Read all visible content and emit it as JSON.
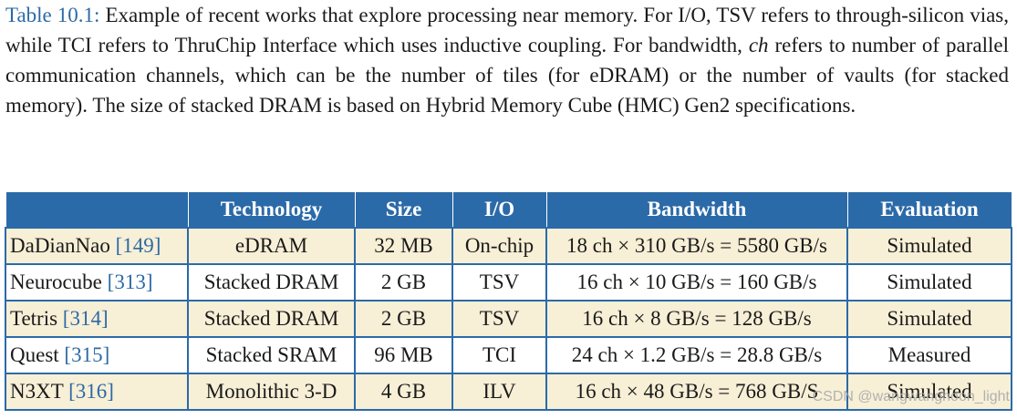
{
  "caption": {
    "label": "Table 10.1:",
    "part1": " Example of recent works that explore processing near memory. For I/O, TSV refers to through-silicon vias, while TCI refers to ThruChip Interface which uses inductive coupling. For bandwidth, ",
    "italic": "ch",
    "part2": " refers to number of parallel communication channels, which can be the number of tiles (for eDRAM) or the number of vaults (for stacked memory). The size of stacked DRAM is based on Hybrid Memory Cube (HMC) Gen2 specifications."
  },
  "table": {
    "headers": [
      "",
      "Technology",
      "Size",
      "I/O",
      "Bandwidth",
      "Evaluation"
    ],
    "rows": [
      {
        "name": "DaDianNao",
        "ref": "[149]",
        "technology": "eDRAM",
        "size": "32 MB",
        "io": "On-chip",
        "bandwidth": "18 ch × 310 GB/s = 5580 GB/s",
        "evaluation": "Simulated"
      },
      {
        "name": "Neurocube",
        "ref": "[313]",
        "technology": "Stacked DRAM",
        "size": "2 GB",
        "io": "TSV",
        "bandwidth": "16 ch × 10 GB/s = 160 GB/s",
        "evaluation": "Simulated"
      },
      {
        "name": "Tetris",
        "ref": "[314]",
        "technology": "Stacked DRAM",
        "size": "2 GB",
        "io": "TSV",
        "bandwidth": "16 ch × 8 GB/s = 128 GB/s",
        "evaluation": "Simulated"
      },
      {
        "name": "Quest",
        "ref": "[315]",
        "technology": "Stacked SRAM",
        "size": "96 MB",
        "io": "TCI",
        "bandwidth": "24 ch × 1.2 GB/s = 28.8 GB/s",
        "evaluation": "Measured"
      },
      {
        "name": "N3XT",
        "ref": "[316]",
        "technology": "Monolithic 3-D",
        "size": "4 GB",
        "io": "ILV",
        "bandwidth": "16 ch × 48 GB/s = 768 GB/S",
        "evaluation": "Simulated"
      }
    ]
  },
  "watermark": "CSDN @wangwanghoon_light",
  "colors": {
    "header_bg": "#2b6aa8",
    "shaded_row": "#f7efd6",
    "link": "#2c6aa6"
  }
}
